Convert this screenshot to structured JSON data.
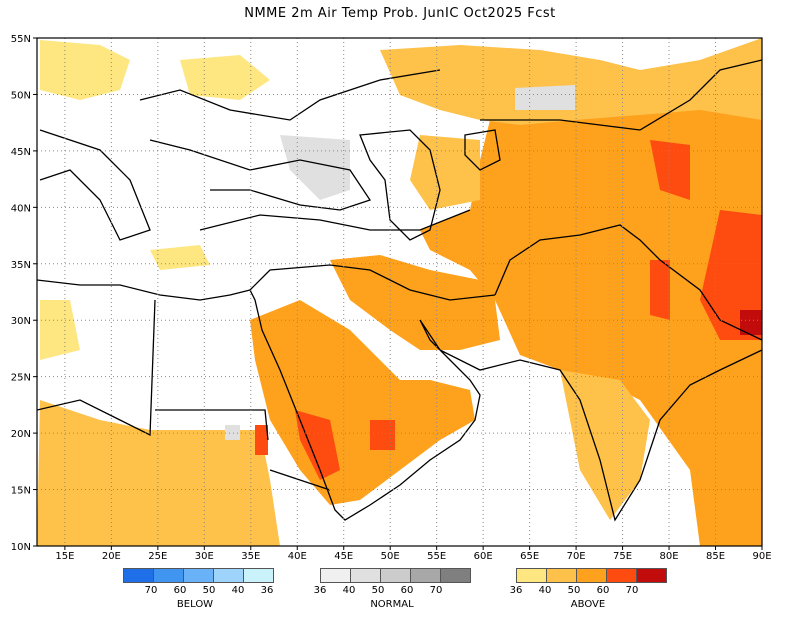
{
  "title": "NMME 2m Air Temp Prob. JunIC  Oct2025 Fcst",
  "map": {
    "lon_range": [
      12,
      90
    ],
    "lat_range": [
      10,
      55
    ],
    "x_ticks": [
      "15E",
      "20E",
      "25E",
      "30E",
      "35E",
      "40E",
      "45E",
      "50E",
      "55E",
      "60E",
      "65E",
      "70E",
      "75E",
      "80E",
      "85E",
      "90E"
    ],
    "y_ticks": [
      "55N",
      "50N",
      "45N",
      "40N",
      "35N",
      "30N",
      "25N",
      "20N",
      "15N",
      "10N"
    ],
    "grid": true
  },
  "legend": {
    "below": {
      "name": "BELOW",
      "colors": [
        "#1f6fe8",
        "#3f95f0",
        "#6ab2f7",
        "#9ed3fb",
        "#c9f2fb"
      ],
      "labels": [
        "70",
        "60",
        "50",
        "40",
        "36"
      ]
    },
    "normal": {
      "name": "NORMAL",
      "colors": [
        "#f0f0f0",
        "#e0e0e0",
        "#cccccc",
        "#a8a8a8",
        "#7f7f7f"
      ],
      "labels": [
        "36",
        "40",
        "50",
        "60",
        "70"
      ]
    },
    "above": {
      "name": "ABOVE",
      "colors": [
        "#fee680",
        "#fec14a",
        "#fea11c",
        "#fe4b10",
        "#c20c0c"
      ],
      "labels": [
        "36",
        "40",
        "50",
        "60",
        "70"
      ]
    }
  }
}
